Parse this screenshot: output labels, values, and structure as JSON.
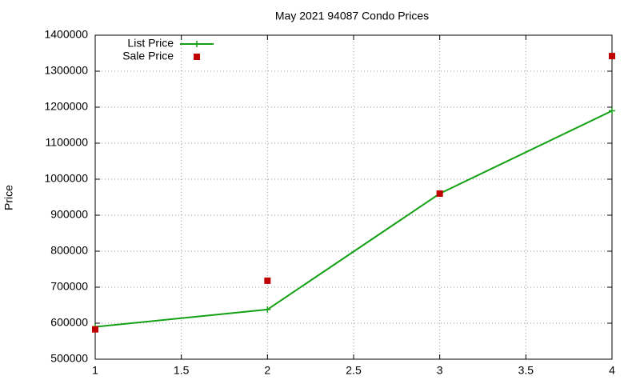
{
  "chart_data": {
    "type": "line",
    "title": "May 2021 94087 Condo Prices",
    "y_label": "Price",
    "x": [
      1,
      2,
      3,
      4
    ],
    "series": [
      {
        "name": "List Price",
        "color": "#14a014",
        "mark": "line",
        "values": [
          590000,
          638000,
          960000,
          1190000
        ]
      },
      {
        "name": "Sale Price",
        "color": "#c00000",
        "mark": "points",
        "values": [
          583000,
          718000,
          960000,
          1342000
        ]
      }
    ],
    "xlim": [
      1,
      4
    ],
    "xticks": [
      1,
      1.5,
      2,
      2.5,
      3,
      3.5,
      4
    ],
    "ylim": [
      500000,
      1400000
    ],
    "yticks": [
      500000,
      600000,
      700000,
      800000,
      900000,
      1000000,
      1100000,
      1200000,
      1300000,
      1400000
    ],
    "grid": true,
    "legend": "top-left"
  }
}
